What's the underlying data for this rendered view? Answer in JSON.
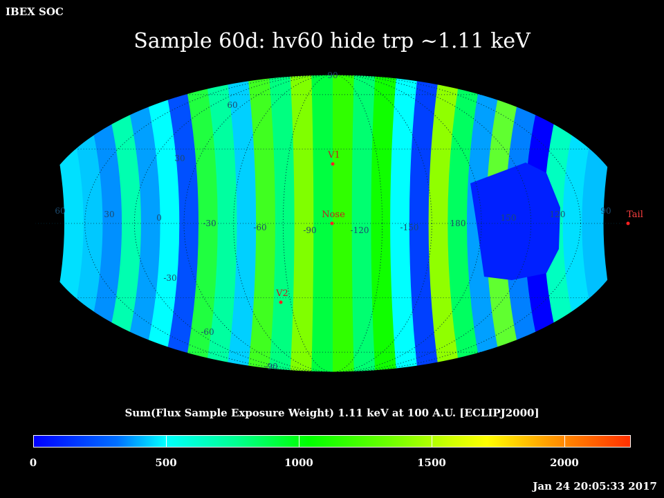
{
  "header": {
    "brand": "IBEX SOC",
    "title": "Sample 60d: hv60 hide trp ~1.11 keV",
    "timestamp": "Jan 24 20:05:33 2017"
  },
  "map": {
    "projection": "Mollweide (ecliptic)",
    "lon_labels": [
      "60",
      "30",
      "0",
      "-30",
      "-60",
      "-90",
      "-120",
      "-150",
      "180",
      "150",
      "120",
      "90"
    ],
    "lat_labels": [
      "90",
      "60",
      "30",
      "-30",
      "-60",
      "-90"
    ],
    "markers": [
      {
        "name": "V1",
        "lon": -105,
        "lat": 34
      },
      {
        "name": "Nose",
        "lon": -105,
        "lat": 5
      },
      {
        "name": "V2",
        "lon": -74,
        "lat": -30
      },
      {
        "name": "Tail",
        "lon": 75,
        "lat": -5
      }
    ],
    "colors": {
      "marker": "#ff2020",
      "label": "#ff4040",
      "grid": "#000000"
    }
  },
  "colorbar": {
    "title": "Sum(Flux Sample Exposure Weight)  1.11 keV at 100 A.U. [ECLIPJ2000]",
    "ticks": [
      "0",
      "500",
      "1000",
      "1500",
      "2000"
    ],
    "tick_values": [
      0,
      500,
      1000,
      1500,
      2000
    ],
    "range": [
      0,
      2250
    ]
  }
}
